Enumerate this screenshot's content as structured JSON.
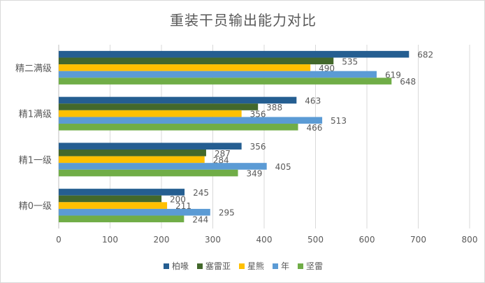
{
  "chart_data": {
    "type": "bar",
    "orientation": "horizontal",
    "title": "重装干员输出能力对比",
    "xlabel": "",
    "ylabel": "",
    "categories": [
      "精0一级",
      "精1一级",
      "精1满级",
      "精二满级"
    ],
    "series": [
      {
        "name": "柏喙",
        "color": "#255e91",
        "values": [
          245,
          356,
          463,
          682
        ]
      },
      {
        "name": "塞雷亚",
        "color": "#43682b",
        "values": [
          200,
          287,
          388,
          535
        ]
      },
      {
        "name": "星熊",
        "color": "#ffc000",
        "values": [
          211,
          284,
          356,
          490
        ]
      },
      {
        "name": "年",
        "color": "#5b9bd5",
        "values": [
          295,
          405,
          513,
          619
        ]
      },
      {
        "name": "坚雷",
        "color": "#70ad47",
        "values": [
          244,
          349,
          466,
          648
        ]
      }
    ],
    "xlim": [
      0,
      800
    ],
    "xticks": [
      0,
      100,
      200,
      300,
      400,
      500,
      600,
      700,
      800
    ],
    "grid": "vertical",
    "legend": "bottom"
  }
}
